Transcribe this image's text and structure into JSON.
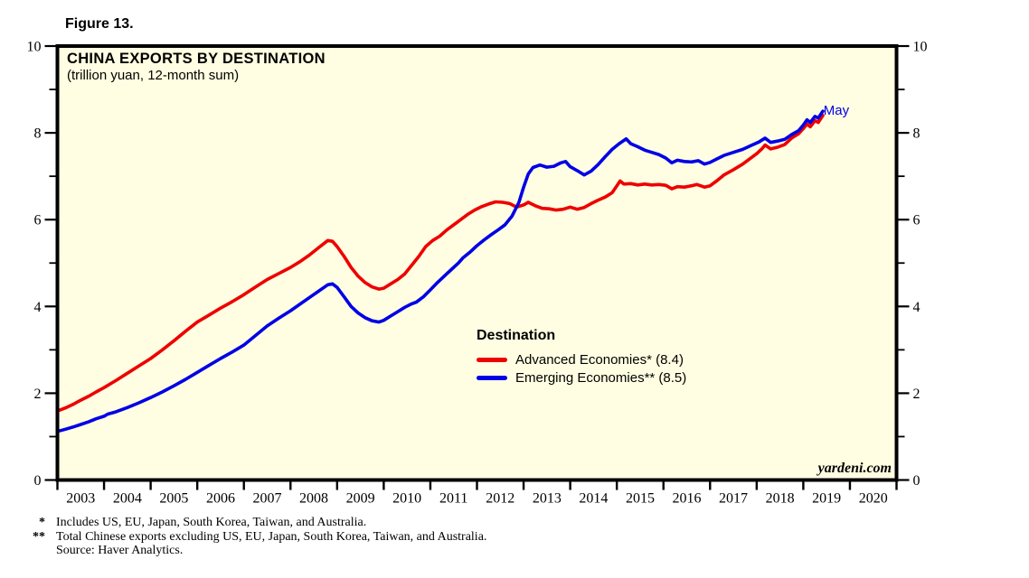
{
  "figure_label": "Figure 13.",
  "chart": {
    "title": "CHINA EXPORTS BY DESTINATION",
    "subtitle": "(trillion yuan, 12-month sum)",
    "background_color": "#fffee2",
    "border_color": "#000000",
    "watermark": "yardeni.com",
    "annotation": {
      "text": "May",
      "color": "#0000e6"
    },
    "legend": {
      "title": "Destination",
      "items": [
        {
          "label": "Advanced Economies* (8.4)",
          "color": "#ee0000"
        },
        {
          "label": "Emerging Economies** (8.5)",
          "color": "#0000e6"
        }
      ]
    }
  },
  "chart_data": {
    "type": "line",
    "title": "CHINA EXPORTS BY DESTINATION",
    "subtitle": "(trillion yuan, 12-month sum)",
    "xlabel": "",
    "ylabel": "",
    "xlim": [
      2003,
      2021
    ],
    "ylim": [
      0,
      10
    ],
    "grid": false,
    "legend_position": "center-right",
    "y_ticks_major": [
      0,
      2,
      4,
      6,
      8,
      10
    ],
    "y_ticks_minor": [
      1,
      3,
      5,
      7,
      9
    ],
    "x_ticks_years": [
      2003,
      2004,
      2005,
      2006,
      2007,
      2008,
      2009,
      2010,
      2011,
      2012,
      2013,
      2014,
      2015,
      2016,
      2017,
      2018,
      2019,
      2020,
      2021
    ],
    "x_tick_labels": [
      "2003",
      "2004",
      "2005",
      "2006",
      "2007",
      "2008",
      "2009",
      "2010",
      "2011",
      "2012",
      "2013",
      "2014",
      "2015",
      "2016",
      "2017",
      "2018",
      "2019",
      "2020"
    ],
    "annotation": {
      "text": "May",
      "x": 2019.55,
      "y": 8.52
    },
    "series": [
      {
        "name": "Advanced Economies* (8.4)",
        "color": "#ee0000",
        "points": [
          [
            2003.0,
            1.59
          ],
          [
            2003.17,
            1.66
          ],
          [
            2003.33,
            1.74
          ],
          [
            2003.5,
            1.84
          ],
          [
            2003.67,
            1.93
          ],
          [
            2003.83,
            2.03
          ],
          [
            2004.0,
            2.13
          ],
          [
            2004.25,
            2.29
          ],
          [
            2004.5,
            2.46
          ],
          [
            2004.75,
            2.63
          ],
          [
            2005.0,
            2.8
          ],
          [
            2005.25,
            3.0
          ],
          [
            2005.5,
            3.21
          ],
          [
            2005.75,
            3.43
          ],
          [
            2006.0,
            3.64
          ],
          [
            2006.25,
            3.8
          ],
          [
            2006.5,
            3.96
          ],
          [
            2006.75,
            4.11
          ],
          [
            2007.0,
            4.27
          ],
          [
            2007.25,
            4.45
          ],
          [
            2007.5,
            4.62
          ],
          [
            2007.75,
            4.76
          ],
          [
            2008.0,
            4.9
          ],
          [
            2008.2,
            5.03
          ],
          [
            2008.4,
            5.18
          ],
          [
            2008.6,
            5.35
          ],
          [
            2008.8,
            5.52
          ],
          [
            2008.9,
            5.5
          ],
          [
            2009.0,
            5.38
          ],
          [
            2009.15,
            5.15
          ],
          [
            2009.3,
            4.9
          ],
          [
            2009.45,
            4.7
          ],
          [
            2009.6,
            4.55
          ],
          [
            2009.75,
            4.45
          ],
          [
            2009.9,
            4.4
          ],
          [
            2010.0,
            4.42
          ],
          [
            2010.15,
            4.52
          ],
          [
            2010.3,
            4.62
          ],
          [
            2010.45,
            4.75
          ],
          [
            2010.6,
            4.95
          ],
          [
            2010.75,
            5.15
          ],
          [
            2010.9,
            5.38
          ],
          [
            2011.05,
            5.52
          ],
          [
            2011.2,
            5.62
          ],
          [
            2011.35,
            5.76
          ],
          [
            2011.5,
            5.88
          ],
          [
            2011.65,
            6.0
          ],
          [
            2011.8,
            6.12
          ],
          [
            2011.95,
            6.22
          ],
          [
            2012.1,
            6.3
          ],
          [
            2012.25,
            6.36
          ],
          [
            2012.4,
            6.41
          ],
          [
            2012.55,
            6.4
          ],
          [
            2012.7,
            6.37
          ],
          [
            2012.85,
            6.29
          ],
          [
            2013.0,
            6.34
          ],
          [
            2013.1,
            6.4
          ],
          [
            2013.25,
            6.32
          ],
          [
            2013.4,
            6.26
          ],
          [
            2013.55,
            6.25
          ],
          [
            2013.7,
            6.22
          ],
          [
            2013.85,
            6.24
          ],
          [
            2014.0,
            6.29
          ],
          [
            2014.15,
            6.24
          ],
          [
            2014.3,
            6.28
          ],
          [
            2014.45,
            6.37
          ],
          [
            2014.6,
            6.45
          ],
          [
            2014.75,
            6.52
          ],
          [
            2014.9,
            6.62
          ],
          [
            2015.0,
            6.78
          ],
          [
            2015.07,
            6.89
          ],
          [
            2015.15,
            6.82
          ],
          [
            2015.3,
            6.83
          ],
          [
            2015.45,
            6.8
          ],
          [
            2015.6,
            6.82
          ],
          [
            2015.75,
            6.8
          ],
          [
            2015.9,
            6.81
          ],
          [
            2016.05,
            6.79
          ],
          [
            2016.18,
            6.71
          ],
          [
            2016.3,
            6.76
          ],
          [
            2016.45,
            6.75
          ],
          [
            2016.6,
            6.78
          ],
          [
            2016.72,
            6.81
          ],
          [
            2016.88,
            6.75
          ],
          [
            2017.0,
            6.78
          ],
          [
            2017.15,
            6.9
          ],
          [
            2017.3,
            7.03
          ],
          [
            2017.5,
            7.15
          ],
          [
            2017.7,
            7.28
          ],
          [
            2017.85,
            7.4
          ],
          [
            2018.0,
            7.52
          ],
          [
            2018.12,
            7.64
          ],
          [
            2018.18,
            7.72
          ],
          [
            2018.3,
            7.63
          ],
          [
            2018.45,
            7.67
          ],
          [
            2018.6,
            7.73
          ],
          [
            2018.75,
            7.88
          ],
          [
            2018.9,
            7.98
          ],
          [
            2019.0,
            8.1
          ],
          [
            2019.08,
            8.2
          ],
          [
            2019.15,
            8.14
          ],
          [
            2019.25,
            8.28
          ],
          [
            2019.32,
            8.24
          ],
          [
            2019.42,
            8.4
          ]
        ]
      },
      {
        "name": "Emerging Economies** (8.5)",
        "color": "#0000e6",
        "points": [
          [
            2003.0,
            1.12
          ],
          [
            2003.17,
            1.17
          ],
          [
            2003.33,
            1.22
          ],
          [
            2003.5,
            1.28
          ],
          [
            2003.67,
            1.34
          ],
          [
            2003.83,
            1.41
          ],
          [
            2004.0,
            1.47
          ],
          [
            2004.08,
            1.52
          ],
          [
            2004.25,
            1.57
          ],
          [
            2004.5,
            1.67
          ],
          [
            2004.75,
            1.78
          ],
          [
            2005.0,
            1.9
          ],
          [
            2005.25,
            2.03
          ],
          [
            2005.5,
            2.17
          ],
          [
            2005.75,
            2.32
          ],
          [
            2006.0,
            2.48
          ],
          [
            2006.25,
            2.64
          ],
          [
            2006.5,
            2.8
          ],
          [
            2006.75,
            2.95
          ],
          [
            2007.0,
            3.11
          ],
          [
            2007.25,
            3.33
          ],
          [
            2007.5,
            3.55
          ],
          [
            2007.75,
            3.73
          ],
          [
            2008.0,
            3.9
          ],
          [
            2008.2,
            4.05
          ],
          [
            2008.4,
            4.2
          ],
          [
            2008.6,
            4.35
          ],
          [
            2008.8,
            4.5
          ],
          [
            2008.9,
            4.52
          ],
          [
            2009.0,
            4.44
          ],
          [
            2009.15,
            4.22
          ],
          [
            2009.3,
            4.0
          ],
          [
            2009.45,
            3.85
          ],
          [
            2009.6,
            3.74
          ],
          [
            2009.75,
            3.67
          ],
          [
            2009.9,
            3.64
          ],
          [
            2010.0,
            3.68
          ],
          [
            2010.15,
            3.78
          ],
          [
            2010.3,
            3.88
          ],
          [
            2010.45,
            3.98
          ],
          [
            2010.6,
            4.06
          ],
          [
            2010.7,
            4.1
          ],
          [
            2010.85,
            4.22
          ],
          [
            2011.0,
            4.38
          ],
          [
            2011.15,
            4.55
          ],
          [
            2011.3,
            4.7
          ],
          [
            2011.45,
            4.85
          ],
          [
            2011.6,
            5.0
          ],
          [
            2011.7,
            5.12
          ],
          [
            2011.85,
            5.25
          ],
          [
            2012.0,
            5.4
          ],
          [
            2012.15,
            5.53
          ],
          [
            2012.3,
            5.65
          ],
          [
            2012.45,
            5.76
          ],
          [
            2012.6,
            5.88
          ],
          [
            2012.75,
            6.08
          ],
          [
            2012.9,
            6.4
          ],
          [
            2013.0,
            6.75
          ],
          [
            2013.1,
            7.05
          ],
          [
            2013.2,
            7.2
          ],
          [
            2013.35,
            7.26
          ],
          [
            2013.5,
            7.21
          ],
          [
            2013.65,
            7.23
          ],
          [
            2013.8,
            7.31
          ],
          [
            2013.9,
            7.34
          ],
          [
            2014.0,
            7.22
          ],
          [
            2014.15,
            7.13
          ],
          [
            2014.3,
            7.03
          ],
          [
            2014.45,
            7.12
          ],
          [
            2014.6,
            7.27
          ],
          [
            2014.75,
            7.45
          ],
          [
            2014.9,
            7.62
          ],
          [
            2015.05,
            7.75
          ],
          [
            2015.2,
            7.86
          ],
          [
            2015.3,
            7.75
          ],
          [
            2015.45,
            7.68
          ],
          [
            2015.6,
            7.6
          ],
          [
            2015.75,
            7.55
          ],
          [
            2015.9,
            7.5
          ],
          [
            2016.05,
            7.42
          ],
          [
            2016.18,
            7.31
          ],
          [
            2016.3,
            7.37
          ],
          [
            2016.45,
            7.34
          ],
          [
            2016.6,
            7.33
          ],
          [
            2016.75,
            7.36
          ],
          [
            2016.88,
            7.28
          ],
          [
            2017.0,
            7.32
          ],
          [
            2017.15,
            7.4
          ],
          [
            2017.3,
            7.48
          ],
          [
            2017.5,
            7.55
          ],
          [
            2017.7,
            7.62
          ],
          [
            2017.9,
            7.72
          ],
          [
            2018.05,
            7.79
          ],
          [
            2018.18,
            7.88
          ],
          [
            2018.3,
            7.78
          ],
          [
            2018.45,
            7.81
          ],
          [
            2018.6,
            7.85
          ],
          [
            2018.75,
            7.96
          ],
          [
            2018.9,
            8.05
          ],
          [
            2019.0,
            8.18
          ],
          [
            2019.08,
            8.3
          ],
          [
            2019.15,
            8.24
          ],
          [
            2019.25,
            8.38
          ],
          [
            2019.32,
            8.34
          ],
          [
            2019.42,
            8.5
          ]
        ]
      }
    ]
  },
  "footnotes": [
    {
      "marker": "*",
      "text": "Includes US, EU, Japan, South Korea, Taiwan, and Australia."
    },
    {
      "marker": "**",
      "text": "Total Chinese exports excluding US, EU, Japan, South Korea, Taiwan, and Australia."
    },
    {
      "marker": "",
      "text": "Source: Haver Analytics."
    }
  ]
}
